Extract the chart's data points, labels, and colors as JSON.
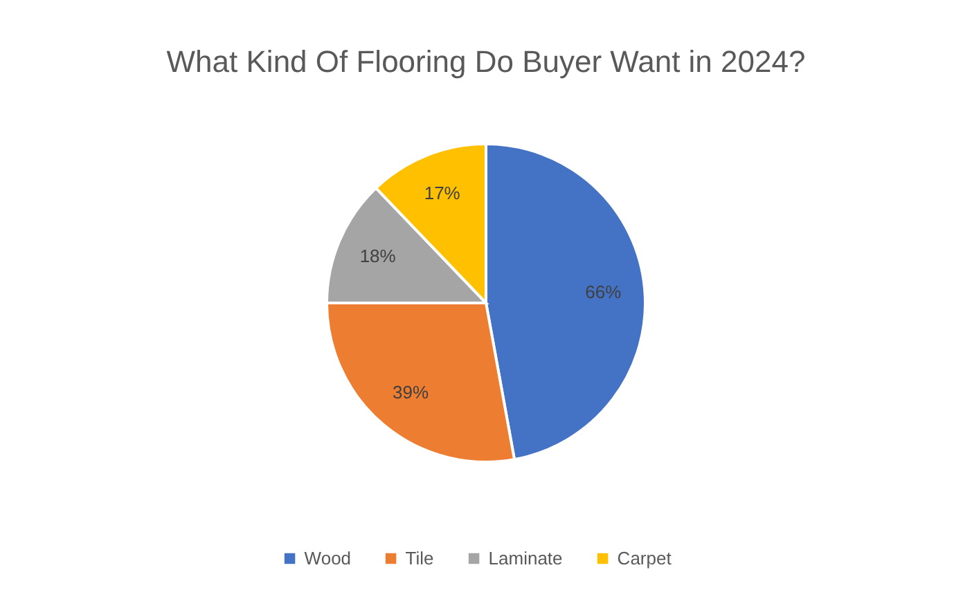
{
  "chart_data": {
    "type": "pie",
    "title": "What Kind Of Flooring Do Buyer Want in 2024?",
    "categories": [
      "Wood",
      "Tile",
      "Laminate",
      "Carpet"
    ],
    "values": [
      66,
      39,
      18,
      17
    ],
    "colors": [
      "#4472c4",
      "#ed7d31",
      "#a5a5a5",
      "#ffc000"
    ],
    "value_labels": [
      "66%",
      "39%",
      "18%",
      "17%"
    ],
    "legend": "bottom"
  }
}
